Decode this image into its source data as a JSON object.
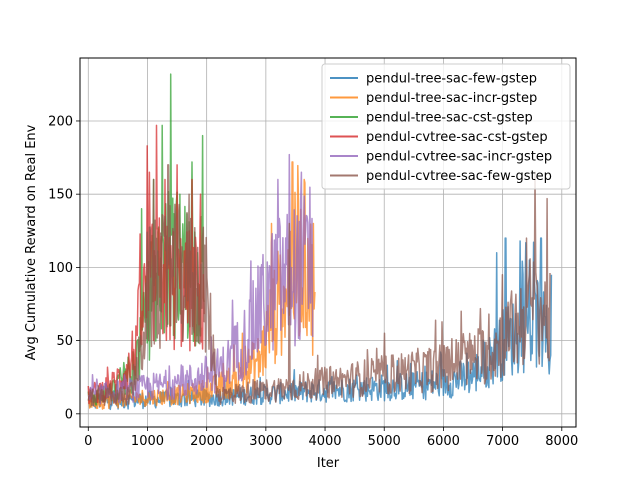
{
  "chart_data": {
    "type": "line",
    "xlabel": "Iter",
    "ylabel": "Avg Cumulative Reward on Real Env",
    "xlim": [
      -140,
      8240
    ],
    "ylim": [
      -9,
      243
    ],
    "xticks": [
      0,
      1000,
      2000,
      3000,
      4000,
      5000,
      6000,
      7000,
      8000
    ],
    "yticks": [
      0,
      50,
      100,
      150,
      200
    ],
    "grid": true,
    "legend_position": "upper right",
    "series": [
      {
        "name": "pendul-tree-sac-few-gstep",
        "color": "#1f77b4",
        "x_range": [
          0,
          7830
        ],
        "points": [
          [
            0,
            8
          ],
          [
            1000,
            9
          ],
          [
            2000,
            10
          ],
          [
            2800,
            12
          ],
          [
            3500,
            14
          ],
          [
            4500,
            16
          ],
          [
            5500,
            18
          ],
          [
            6000,
            20
          ],
          [
            6500,
            25
          ],
          [
            6800,
            35
          ],
          [
            7000,
            45
          ],
          [
            7200,
            50
          ],
          [
            7400,
            55
          ],
          [
            7600,
            60
          ],
          [
            7830,
            40
          ]
        ],
        "peaks": [
          [
            6900,
            110
          ],
          [
            7050,
            120
          ],
          [
            7300,
            118
          ],
          [
            7450,
            105
          ],
          [
            7650,
            120
          ],
          [
            7820,
            95
          ]
        ]
      },
      {
        "name": "pendul-tree-sac-incr-gstep",
        "color": "#ff7f0e",
        "x_range": [
          0,
          3830
        ],
        "points": [
          [
            0,
            8
          ],
          [
            800,
            10
          ],
          [
            1500,
            12
          ],
          [
            2000,
            15
          ],
          [
            2500,
            22
          ],
          [
            2900,
            35
          ],
          [
            3100,
            60
          ],
          [
            3300,
            80
          ],
          [
            3500,
            95
          ],
          [
            3700,
            100
          ],
          [
            3830,
            70
          ]
        ],
        "peaks": [
          [
            2600,
            55
          ],
          [
            3100,
            130
          ],
          [
            3450,
            172
          ],
          [
            3650,
            160
          ],
          [
            3800,
            130
          ]
        ]
      },
      {
        "name": "pendul-tree-sac-cst-gstep",
        "color": "#2ca02c",
        "x_range": [
          0,
          1960
        ],
        "points": [
          [
            0,
            10
          ],
          [
            400,
            15
          ],
          [
            700,
            25
          ],
          [
            900,
            45
          ],
          [
            1050,
            75
          ],
          [
            1200,
            90
          ],
          [
            1400,
            100
          ],
          [
            1600,
            95
          ],
          [
            1800,
            90
          ],
          [
            1960,
            85
          ]
        ],
        "peaks": [
          [
            600,
            35
          ],
          [
            900,
            140
          ],
          [
            1100,
            160
          ],
          [
            1250,
            197
          ],
          [
            1390,
            232
          ],
          [
            1550,
            150
          ],
          [
            1750,
            172
          ],
          [
            1930,
            190
          ]
        ]
      },
      {
        "name": "pendul-cvtree-sac-cst-gstep",
        "color": "#d62728",
        "x_range": [
          0,
          1960
        ],
        "points": [
          [
            0,
            12
          ],
          [
            400,
            18
          ],
          [
            700,
            30
          ],
          [
            850,
            55
          ],
          [
            1000,
            80
          ],
          [
            1200,
            85
          ],
          [
            1400,
            82
          ],
          [
            1600,
            80
          ],
          [
            1800,
            78
          ],
          [
            1960,
            75
          ]
        ],
        "peaks": [
          [
            800,
            60
          ],
          [
            1000,
            183
          ],
          [
            1150,
            197
          ],
          [
            1300,
            160
          ],
          [
            1500,
            170
          ],
          [
            1750,
            160
          ],
          [
            1900,
            150
          ]
        ]
      },
      {
        "name": "pendul-cvtree-sac-incr-gstep",
        "color": "#9467bd",
        "x_range": [
          0,
          3800
        ],
        "points": [
          [
            0,
            12
          ],
          [
            600,
            15
          ],
          [
            1200,
            18
          ],
          [
            1800,
            22
          ],
          [
            2300,
            30
          ],
          [
            2700,
            50
          ],
          [
            2950,
            70
          ],
          [
            3200,
            85
          ],
          [
            3450,
            90
          ],
          [
            3650,
            95
          ],
          [
            3800,
            85
          ]
        ],
        "peaks": [
          [
            2500,
            60
          ],
          [
            2900,
            100
          ],
          [
            3200,
            160
          ],
          [
            3400,
            177
          ],
          [
            3600,
            165
          ]
        ]
      },
      {
        "name": "pendul-cvtree-sac-few-gstep",
        "color": "#8c564b",
        "x_range": [
          0,
          7800
        ],
        "points": [
          [
            0,
            10
          ],
          [
            700,
            12
          ],
          [
            900,
            40
          ],
          [
            1000,
            80
          ],
          [
            1500,
            90
          ],
          [
            1960,
            85
          ],
          [
            2200,
            12
          ],
          [
            3000,
            15
          ],
          [
            4000,
            20
          ],
          [
            5000,
            25
          ],
          [
            6000,
            30
          ],
          [
            6800,
            40
          ],
          [
            7200,
            55
          ],
          [
            7500,
            70
          ],
          [
            7800,
            60
          ]
        ],
        "peaks": [
          [
            1100,
            160
          ],
          [
            1350,
            170
          ],
          [
            1700,
            150
          ],
          [
            3400,
            130
          ],
          [
            5000,
            55
          ],
          [
            6300,
            70
          ],
          [
            7000,
            95
          ],
          [
            7400,
            120
          ],
          [
            7550,
            165
          ],
          [
            7750,
            147
          ]
        ]
      }
    ]
  }
}
